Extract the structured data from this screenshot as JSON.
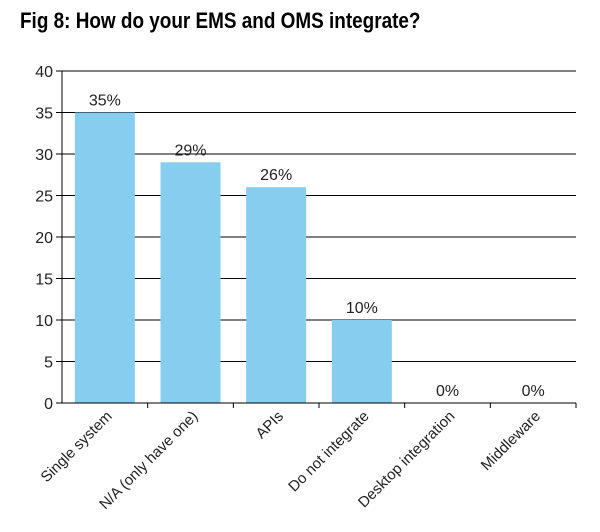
{
  "title": "Fig 8: How do your EMS and OMS integrate?",
  "colors": {
    "bar": "#87cdf0",
    "grid": "#000000",
    "axis": "#000000"
  },
  "chart_data": {
    "type": "bar",
    "title": "Fig 8: How do your EMS and OMS integrate?",
    "xlabel": "",
    "ylabel": "",
    "categories": [
      "Single system",
      "N/A (only have one)",
      "APIs",
      "Do not integrate",
      "Desktop integration",
      "Middleware"
    ],
    "values": [
      35,
      29,
      26,
      10,
      0,
      0
    ],
    "data_labels": [
      "35%",
      "29%",
      "26%",
      "10%",
      "0%",
      "0%"
    ],
    "ylim": [
      0,
      40
    ],
    "yticks": [
      0,
      5,
      10,
      15,
      20,
      25,
      30,
      35,
      40
    ],
    "grid": true,
    "legend": "none"
  }
}
